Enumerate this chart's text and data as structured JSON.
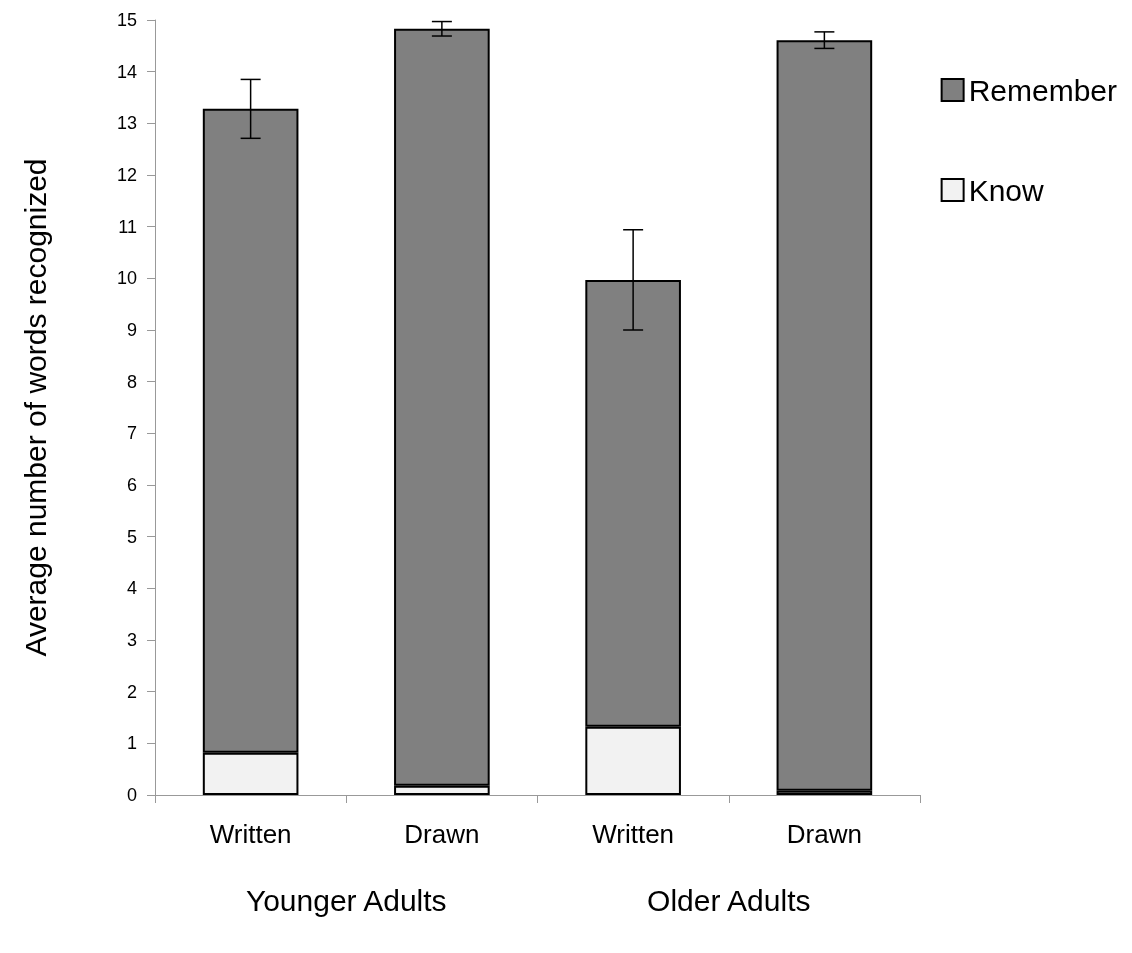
{
  "chart_data": {
    "type": "bar",
    "stacked": true,
    "ylabel": "Average number of words recognized",
    "categories": [
      "Written",
      "Drawn",
      "Written",
      "Drawn"
    ],
    "series": [
      {
        "name": "Know",
        "color": "#f2f2f2",
        "values": [
          0.82,
          0.18,
          1.32,
          0.08
        ]
      },
      {
        "name": "Remember",
        "color": "#808080",
        "values": [
          12.46,
          14.65,
          8.65,
          14.53
        ],
        "errors": [
          0.57,
          0.14,
          0.97,
          0.16
        ]
      }
    ],
    "annotations": [
      "Younger Adults",
      "Older Adults"
    ],
    "ylim": [
      0,
      15
    ],
    "yticks": [
      0,
      1,
      2,
      3,
      4,
      5,
      6,
      7,
      8,
      9,
      10,
      11,
      12,
      13,
      14,
      15
    ],
    "grid": false,
    "legend": "right"
  }
}
